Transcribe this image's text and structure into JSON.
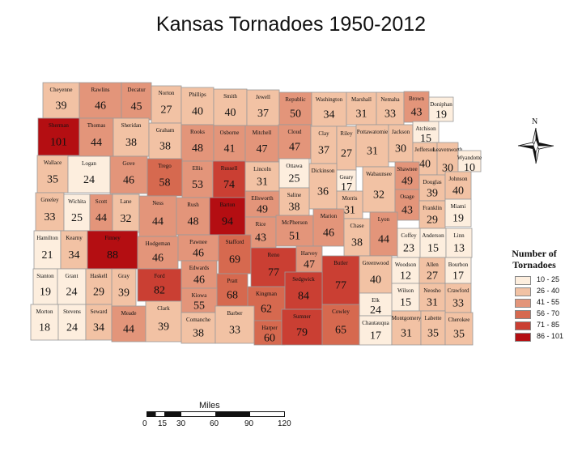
{
  "title": "Kansas Tornadoes 1950-2012",
  "legend": {
    "title_line1": "Number of",
    "title_line2": "Tornadoes",
    "classes": [
      {
        "label": "10 - 25",
        "color": "#fdeede"
      },
      {
        "label": "26 - 40",
        "color": "#f2c2a4"
      },
      {
        "label": "41 - 55",
        "color": "#e3957a"
      },
      {
        "label": "56 - 70",
        "color": "#d6694f"
      },
      {
        "label": "71 - 85",
        "color": "#ca3f33"
      },
      {
        "label": "86 - 101",
        "color": "#b40e12"
      }
    ]
  },
  "scale_bar": {
    "title": "Miles",
    "ticks": [
      "0",
      "15",
      "30",
      "60",
      "90",
      "120"
    ]
  },
  "compass": {
    "label": "N",
    "icon": "north-arrow-icon"
  },
  "counties": [
    {
      "name": "Cheyenne",
      "count": 39
    },
    {
      "name": "Rawlins",
      "count": 46
    },
    {
      "name": "Decatur",
      "count": 45
    },
    {
      "name": "Norton",
      "count": 27
    },
    {
      "name": "Phillips",
      "count": 40
    },
    {
      "name": "Smith",
      "count": 40
    },
    {
      "name": "Jewell",
      "count": 37
    },
    {
      "name": "Republic",
      "count": 50
    },
    {
      "name": "Washington",
      "count": 34
    },
    {
      "name": "Marshall",
      "count": 31
    },
    {
      "name": "Nemaha",
      "count": 33
    },
    {
      "name": "Brown",
      "count": 43
    },
    {
      "name": "Doniphan",
      "count": 19
    },
    {
      "name": "Sherman",
      "count": 101
    },
    {
      "name": "Thomas",
      "count": 44
    },
    {
      "name": "Sheridan",
      "count": 38
    },
    {
      "name": "Graham",
      "count": 38
    },
    {
      "name": "Rooks",
      "count": 48
    },
    {
      "name": "Osborne",
      "count": 41
    },
    {
      "name": "Mitchell",
      "count": 47
    },
    {
      "name": "Cloud",
      "count": 47
    },
    {
      "name": "Clay",
      "count": 37
    },
    {
      "name": "Riley",
      "count": 27
    },
    {
      "name": "Pottawatomie",
      "count": 31
    },
    {
      "name": "Jackson",
      "count": 30
    },
    {
      "name": "Atchison",
      "count": 15
    },
    {
      "name": "Jefferson",
      "count": 40
    },
    {
      "name": "Leavenworth",
      "count": 30
    },
    {
      "name": "Wyandotte",
      "count": 10
    },
    {
      "name": "Wallace",
      "count": 35
    },
    {
      "name": "Logan",
      "count": 24
    },
    {
      "name": "Gove",
      "count": 46
    },
    {
      "name": "Trego",
      "count": 58
    },
    {
      "name": "Ellis",
      "count": 53
    },
    {
      "name": "Russell",
      "count": 74
    },
    {
      "name": "Lincoln",
      "count": 31
    },
    {
      "name": "Ottawa",
      "count": 25
    },
    {
      "name": "Dickinson",
      "count": 36
    },
    {
      "name": "Geary",
      "count": 17
    },
    {
      "name": "Wabaunsee",
      "count": 32
    },
    {
      "name": "Shawnee",
      "count": 49
    },
    {
      "name": "Douglas",
      "count": 39
    },
    {
      "name": "Johnson",
      "count": 40
    },
    {
      "name": "Saline",
      "count": 38
    },
    {
      "name": "Morris",
      "count": 31
    },
    {
      "name": "Osage",
      "count": 43
    },
    {
      "name": "Franklin",
      "count": 29
    },
    {
      "name": "Miami",
      "count": 19
    },
    {
      "name": "Greeley",
      "count": 33
    },
    {
      "name": "Wichita",
      "count": 25
    },
    {
      "name": "Scott",
      "count": 44
    },
    {
      "name": "Lane",
      "count": 32
    },
    {
      "name": "Ness",
      "count": 44
    },
    {
      "name": "Rush",
      "count": 48
    },
    {
      "name": "Barton",
      "count": 94
    },
    {
      "name": "Ellsworth",
      "count": 49
    },
    {
      "name": "Rice",
      "count": 43
    },
    {
      "name": "McPherson",
      "count": 51
    },
    {
      "name": "Marion",
      "count": 46
    },
    {
      "name": "Chase",
      "count": 38
    },
    {
      "name": "Lyon",
      "count": 44
    },
    {
      "name": "Coffey",
      "count": 23
    },
    {
      "name": "Anderson",
      "count": 15
    },
    {
      "name": "Linn",
      "count": 13
    },
    {
      "name": "Hamilton",
      "count": 21
    },
    {
      "name": "Kearny",
      "count": 34
    },
    {
      "name": "Finney",
      "count": 88
    },
    {
      "name": "Hodgeman",
      "count": 46
    },
    {
      "name": "Pawnee",
      "count": 46
    },
    {
      "name": "Stafford",
      "count": 69
    },
    {
      "name": "Reno",
      "count": 77
    },
    {
      "name": "Harvey",
      "count": 47
    },
    {
      "name": "Butler",
      "count": 77
    },
    {
      "name": "Greenwood",
      "count": 40
    },
    {
      "name": "Woodson",
      "count": 12
    },
    {
      "name": "Allen",
      "count": 27
    },
    {
      "name": "Bourbon",
      "count": 17
    },
    {
      "name": "Gray",
      "count": 39
    },
    {
      "name": "Ford",
      "count": 82
    },
    {
      "name": "Edwards",
      "count": 46
    },
    {
      "name": "Pratt",
      "count": 68
    },
    {
      "name": "Kingman",
      "count": 62
    },
    {
      "name": "Sedgwick",
      "count": 84
    },
    {
      "name": "Wilson",
      "count": 15
    },
    {
      "name": "Neosho",
      "count": 31
    },
    {
      "name": "Crawford",
      "count": 33
    },
    {
      "name": "Stanton",
      "count": 19
    },
    {
      "name": "Grant",
      "count": 24
    },
    {
      "name": "Haskell",
      "count": 29
    },
    {
      "name": "Kiowa",
      "count": 55
    },
    {
      "name": "Elk",
      "count": 24
    },
    {
      "name": "Morton",
      "count": 18
    },
    {
      "name": "Stevens",
      "count": 24
    },
    {
      "name": "Seward",
      "count": 34
    },
    {
      "name": "Meade",
      "count": 44
    },
    {
      "name": "Clark",
      "count": 39
    },
    {
      "name": "Comanche",
      "count": 38
    },
    {
      "name": "Barber",
      "count": 33
    },
    {
      "name": "Harper",
      "count": 60
    },
    {
      "name": "Sumner",
      "count": 79
    },
    {
      "name": "Cowley",
      "count": 65
    },
    {
      "name": "Chautauqua",
      "count": 17
    },
    {
      "name": "Montgomery",
      "count": 31
    },
    {
      "name": "Labette",
      "count": 35
    },
    {
      "name": "Cherokee",
      "count": 35
    }
  ]
}
